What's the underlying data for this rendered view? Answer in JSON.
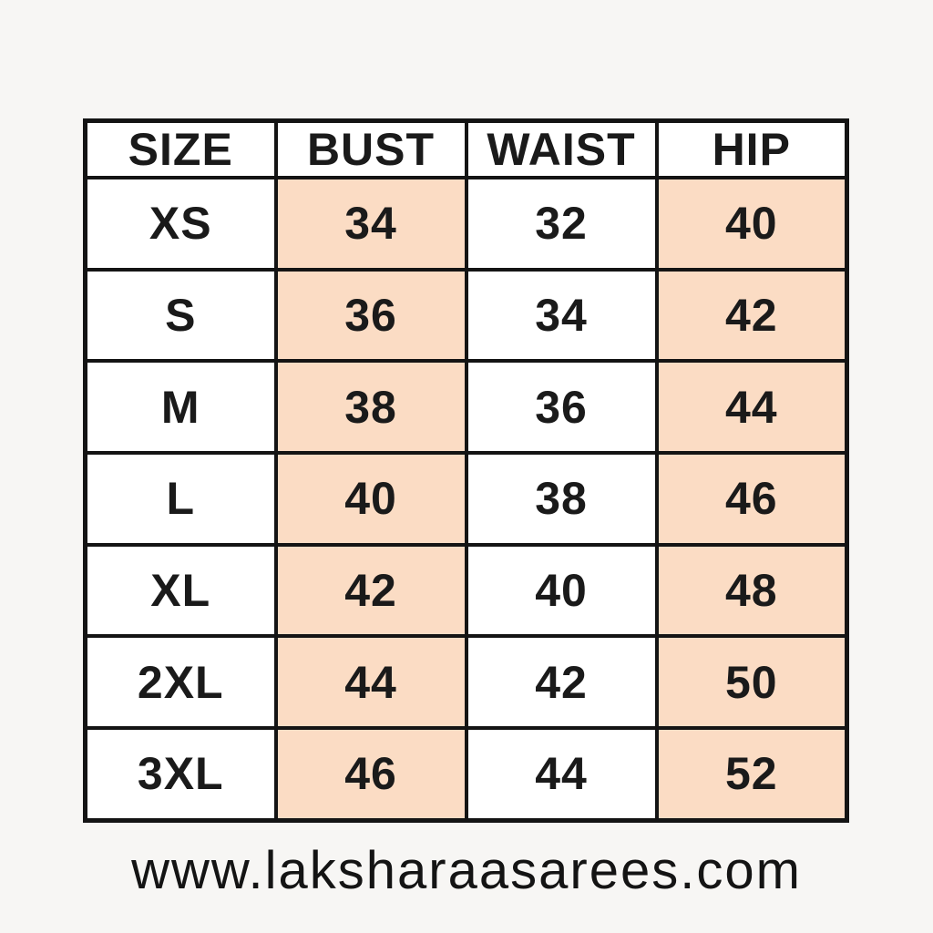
{
  "page": {
    "background_color": "#f7f6f4",
    "highlight_color": "#fbdcc4",
    "border_color": "#141414",
    "text_color": "#1a1a1a"
  },
  "table": {
    "headers": [
      "SIZE",
      "BUST",
      "WAIST",
      "HIP"
    ],
    "rows": [
      {
        "size": "XS",
        "bust": "34",
        "waist": "32",
        "hip": "40"
      },
      {
        "size": "S",
        "bust": "36",
        "waist": "34",
        "hip": "42"
      },
      {
        "size": "M",
        "bust": "38",
        "waist": "36",
        "hip": "44"
      },
      {
        "size": "L",
        "bust": "40",
        "waist": "38",
        "hip": "46"
      },
      {
        "size": "XL",
        "bust": "42",
        "waist": "40",
        "hip": "48"
      },
      {
        "size": "2XL",
        "bust": "44",
        "waist": "42",
        "hip": "50"
      },
      {
        "size": "3XL",
        "bust": "46",
        "waist": "44",
        "hip": "52"
      }
    ]
  },
  "footer": {
    "website": "www.laksharaasarees.com"
  },
  "chart_data": {
    "type": "table",
    "columns": [
      "SIZE",
      "BUST",
      "WAIST",
      "HIP"
    ],
    "rows": [
      [
        "XS",
        34,
        32,
        40
      ],
      [
        "S",
        36,
        34,
        42
      ],
      [
        "M",
        38,
        36,
        44
      ],
      [
        "L",
        40,
        38,
        46
      ],
      [
        "XL",
        42,
        40,
        48
      ],
      [
        "2XL",
        44,
        42,
        50
      ],
      [
        "3XL",
        46,
        44,
        52
      ]
    ],
    "highlighted_columns": [
      "BUST",
      "HIP"
    ],
    "legend_position": "none",
    "footer": "www.laksharaasarees.com"
  }
}
